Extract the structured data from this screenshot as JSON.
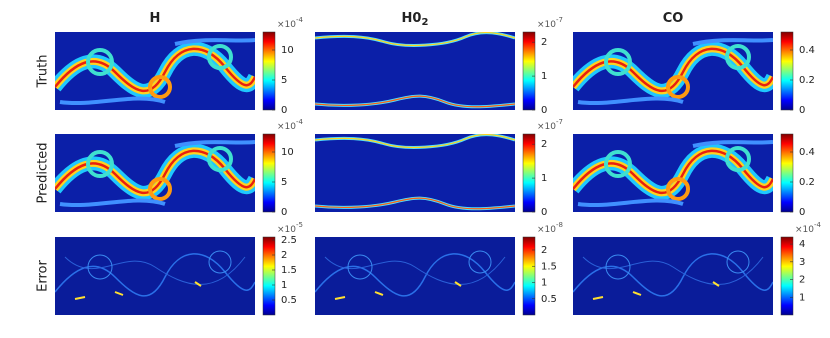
{
  "chart_data": [
    {
      "type": "heatmap",
      "title": "H",
      "ylabel": "Truth",
      "colorbar": {
        "lim": [
          0,
          13
        ],
        "ticks": [
          0,
          5,
          10
        ],
        "multiplier": {
          "base": "×10",
          "exponent": "-4"
        }
      }
    },
    {
      "type": "heatmap",
      "title": "H0",
      "title_subscript": "2",
      "colorbar": {
        "lim": [
          0,
          2.3
        ],
        "ticks": [
          0,
          1,
          2
        ],
        "multiplier": {
          "base": "×10",
          "exponent": "-7"
        }
      }
    },
    {
      "type": "heatmap",
      "title": "CO",
      "colorbar": {
        "lim": [
          0,
          0.52
        ],
        "ticks": [
          0,
          0.2,
          0.4
        ]
      }
    },
    {
      "type": "heatmap",
      "ylabel": "Predicted",
      "colorbar": {
        "lim": [
          0,
          13
        ],
        "ticks": [
          0,
          5,
          10
        ],
        "multiplier": {
          "base": "×10",
          "exponent": "-4"
        }
      }
    },
    {
      "type": "heatmap",
      "colorbar": {
        "lim": [
          0,
          2.3
        ],
        "ticks": [
          0,
          1,
          2
        ],
        "multiplier": {
          "base": "×10",
          "exponent": "-7"
        }
      }
    },
    {
      "type": "heatmap",
      "colorbar": {
        "lim": [
          0,
          0.52
        ],
        "ticks": [
          0,
          0.2,
          0.4
        ]
      }
    },
    {
      "type": "heatmap",
      "ylabel": "Error",
      "colorbar": {
        "lim": [
          0,
          2.6
        ],
        "ticks": [
          0.5,
          1,
          1.5,
          2,
          2.5
        ],
        "multiplier": {
          "base": "×10",
          "exponent": "-5"
        }
      }
    },
    {
      "type": "heatmap",
      "colorbar": {
        "lim": [
          0,
          2.4
        ],
        "ticks": [
          0.5,
          1,
          1.5,
          2
        ],
        "multiplier": {
          "base": "×10",
          "exponent": "-8"
        }
      }
    },
    {
      "type": "heatmap",
      "colorbar": {
        "lim": [
          0,
          4.4
        ],
        "ticks": [
          1,
          2,
          3,
          4
        ],
        "multiplier": {
          "base": "×10",
          "exponent": "-4"
        }
      }
    }
  ]
}
